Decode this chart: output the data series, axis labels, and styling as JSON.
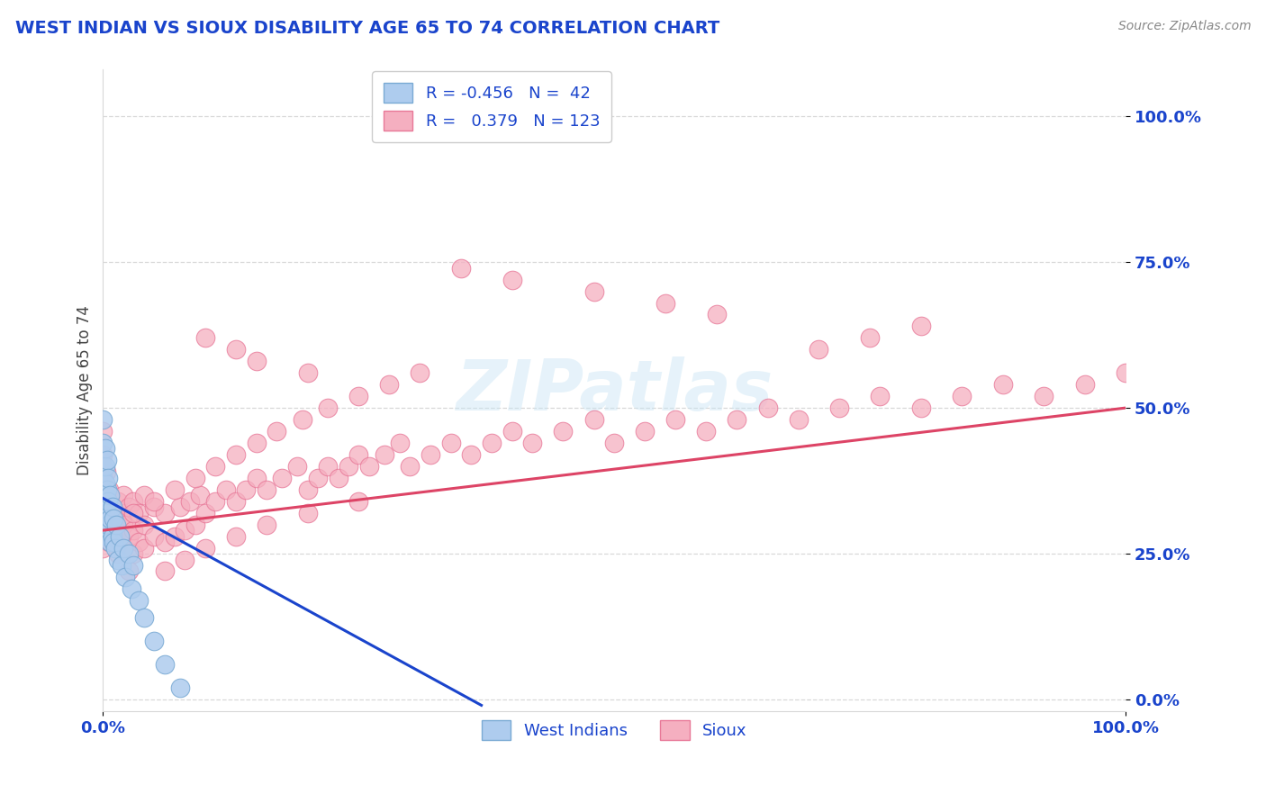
{
  "title": "WEST INDIAN VS SIOUX DISABILITY AGE 65 TO 74 CORRELATION CHART",
  "source": "Source: ZipAtlas.com",
  "ylabel": "Disability Age 65 to 74",
  "xlim": [
    0.0,
    1.0
  ],
  "ylim": [
    -0.02,
    1.08
  ],
  "xtick_positions": [
    0.0,
    1.0
  ],
  "xtick_labels": [
    "0.0%",
    "100.0%"
  ],
  "ytick_positions": [
    0.0,
    0.25,
    0.5,
    0.75,
    1.0
  ],
  "ytick_labels": [
    "0.0%",
    "25.0%",
    "50.0%",
    "75.0%",
    "100.0%"
  ],
  "west_indian_color": "#aeccee",
  "sioux_color": "#f5afc0",
  "west_indian_edge": "#7aaad4",
  "sioux_edge": "#e87898",
  "regression_blue": "#1a44cc",
  "regression_pink": "#dd4466",
  "watermark_text": "ZIPatlas",
  "title_color": "#1a44cc",
  "tick_color": "#1a44cc",
  "source_color": "#888888",
  "grid_color": "#d8d8d8",
  "west_indian_x": [
    0.0,
    0.0,
    0.0,
    0.0,
    0.0,
    0.0,
    0.0,
    0.002,
    0.002,
    0.002,
    0.002,
    0.002,
    0.002,
    0.004,
    0.004,
    0.004,
    0.004,
    0.005,
    0.005,
    0.005,
    0.007,
    0.007,
    0.007,
    0.009,
    0.009,
    0.01,
    0.01,
    0.012,
    0.013,
    0.015,
    0.016,
    0.018,
    0.02,
    0.022,
    0.025,
    0.028,
    0.03,
    0.035,
    0.04,
    0.05,
    0.06,
    0.075
  ],
  "west_indian_y": [
    0.3,
    0.33,
    0.36,
    0.38,
    0.4,
    0.44,
    0.48,
    0.29,
    0.32,
    0.35,
    0.37,
    0.4,
    0.43,
    0.28,
    0.32,
    0.36,
    0.41,
    0.3,
    0.34,
    0.38,
    0.27,
    0.31,
    0.35,
    0.28,
    0.33,
    0.27,
    0.31,
    0.26,
    0.3,
    0.24,
    0.28,
    0.23,
    0.26,
    0.21,
    0.25,
    0.19,
    0.23,
    0.17,
    0.14,
    0.1,
    0.06,
    0.02
  ],
  "sioux_x": [
    0.0,
    0.0,
    0.0,
    0.0,
    0.0,
    0.0,
    0.0,
    0.003,
    0.003,
    0.003,
    0.003,
    0.006,
    0.006,
    0.006,
    0.009,
    0.009,
    0.012,
    0.012,
    0.015,
    0.015,
    0.015,
    0.018,
    0.018,
    0.02,
    0.02,
    0.02,
    0.025,
    0.025,
    0.03,
    0.03,
    0.03,
    0.035,
    0.035,
    0.04,
    0.04,
    0.04,
    0.05,
    0.05,
    0.06,
    0.06,
    0.07,
    0.075,
    0.08,
    0.085,
    0.09,
    0.095,
    0.1,
    0.11,
    0.12,
    0.13,
    0.14,
    0.15,
    0.16,
    0.175,
    0.19,
    0.2,
    0.21,
    0.22,
    0.23,
    0.24,
    0.25,
    0.26,
    0.275,
    0.29,
    0.3,
    0.32,
    0.34,
    0.36,
    0.38,
    0.4,
    0.42,
    0.45,
    0.48,
    0.5,
    0.53,
    0.56,
    0.59,
    0.62,
    0.65,
    0.68,
    0.72,
    0.76,
    0.8,
    0.84,
    0.88,
    0.92,
    0.96,
    1.0,
    0.03,
    0.05,
    0.07,
    0.09,
    0.11,
    0.13,
    0.15,
    0.17,
    0.195,
    0.22,
    0.25,
    0.28,
    0.31,
    0.06,
    0.025,
    0.08,
    0.1,
    0.13,
    0.16,
    0.2,
    0.25,
    0.13,
    0.7,
    0.75,
    0.8,
    0.6,
    0.55,
    0.48,
    0.4,
    0.35,
    0.2,
    0.15,
    0.1
  ],
  "sioux_y": [
    0.26,
    0.29,
    0.32,
    0.35,
    0.38,
    0.42,
    0.46,
    0.28,
    0.31,
    0.35,
    0.39,
    0.27,
    0.31,
    0.36,
    0.29,
    0.33,
    0.28,
    0.32,
    0.25,
    0.29,
    0.34,
    0.27,
    0.31,
    0.26,
    0.3,
    0.35,
    0.28,
    0.33,
    0.25,
    0.29,
    0.34,
    0.27,
    0.32,
    0.26,
    0.3,
    0.35,
    0.28,
    0.33,
    0.27,
    0.32,
    0.28,
    0.33,
    0.29,
    0.34,
    0.3,
    0.35,
    0.32,
    0.34,
    0.36,
    0.34,
    0.36,
    0.38,
    0.36,
    0.38,
    0.4,
    0.36,
    0.38,
    0.4,
    0.38,
    0.4,
    0.42,
    0.4,
    0.42,
    0.44,
    0.4,
    0.42,
    0.44,
    0.42,
    0.44,
    0.46,
    0.44,
    0.46,
    0.48,
    0.44,
    0.46,
    0.48,
    0.46,
    0.48,
    0.5,
    0.48,
    0.5,
    0.52,
    0.5,
    0.52,
    0.54,
    0.52,
    0.54,
    0.56,
    0.32,
    0.34,
    0.36,
    0.38,
    0.4,
    0.42,
    0.44,
    0.46,
    0.48,
    0.5,
    0.52,
    0.54,
    0.56,
    0.22,
    0.22,
    0.24,
    0.26,
    0.28,
    0.3,
    0.32,
    0.34,
    0.6,
    0.6,
    0.62,
    0.64,
    0.66,
    0.68,
    0.7,
    0.72,
    0.74,
    0.56,
    0.58,
    0.62
  ]
}
